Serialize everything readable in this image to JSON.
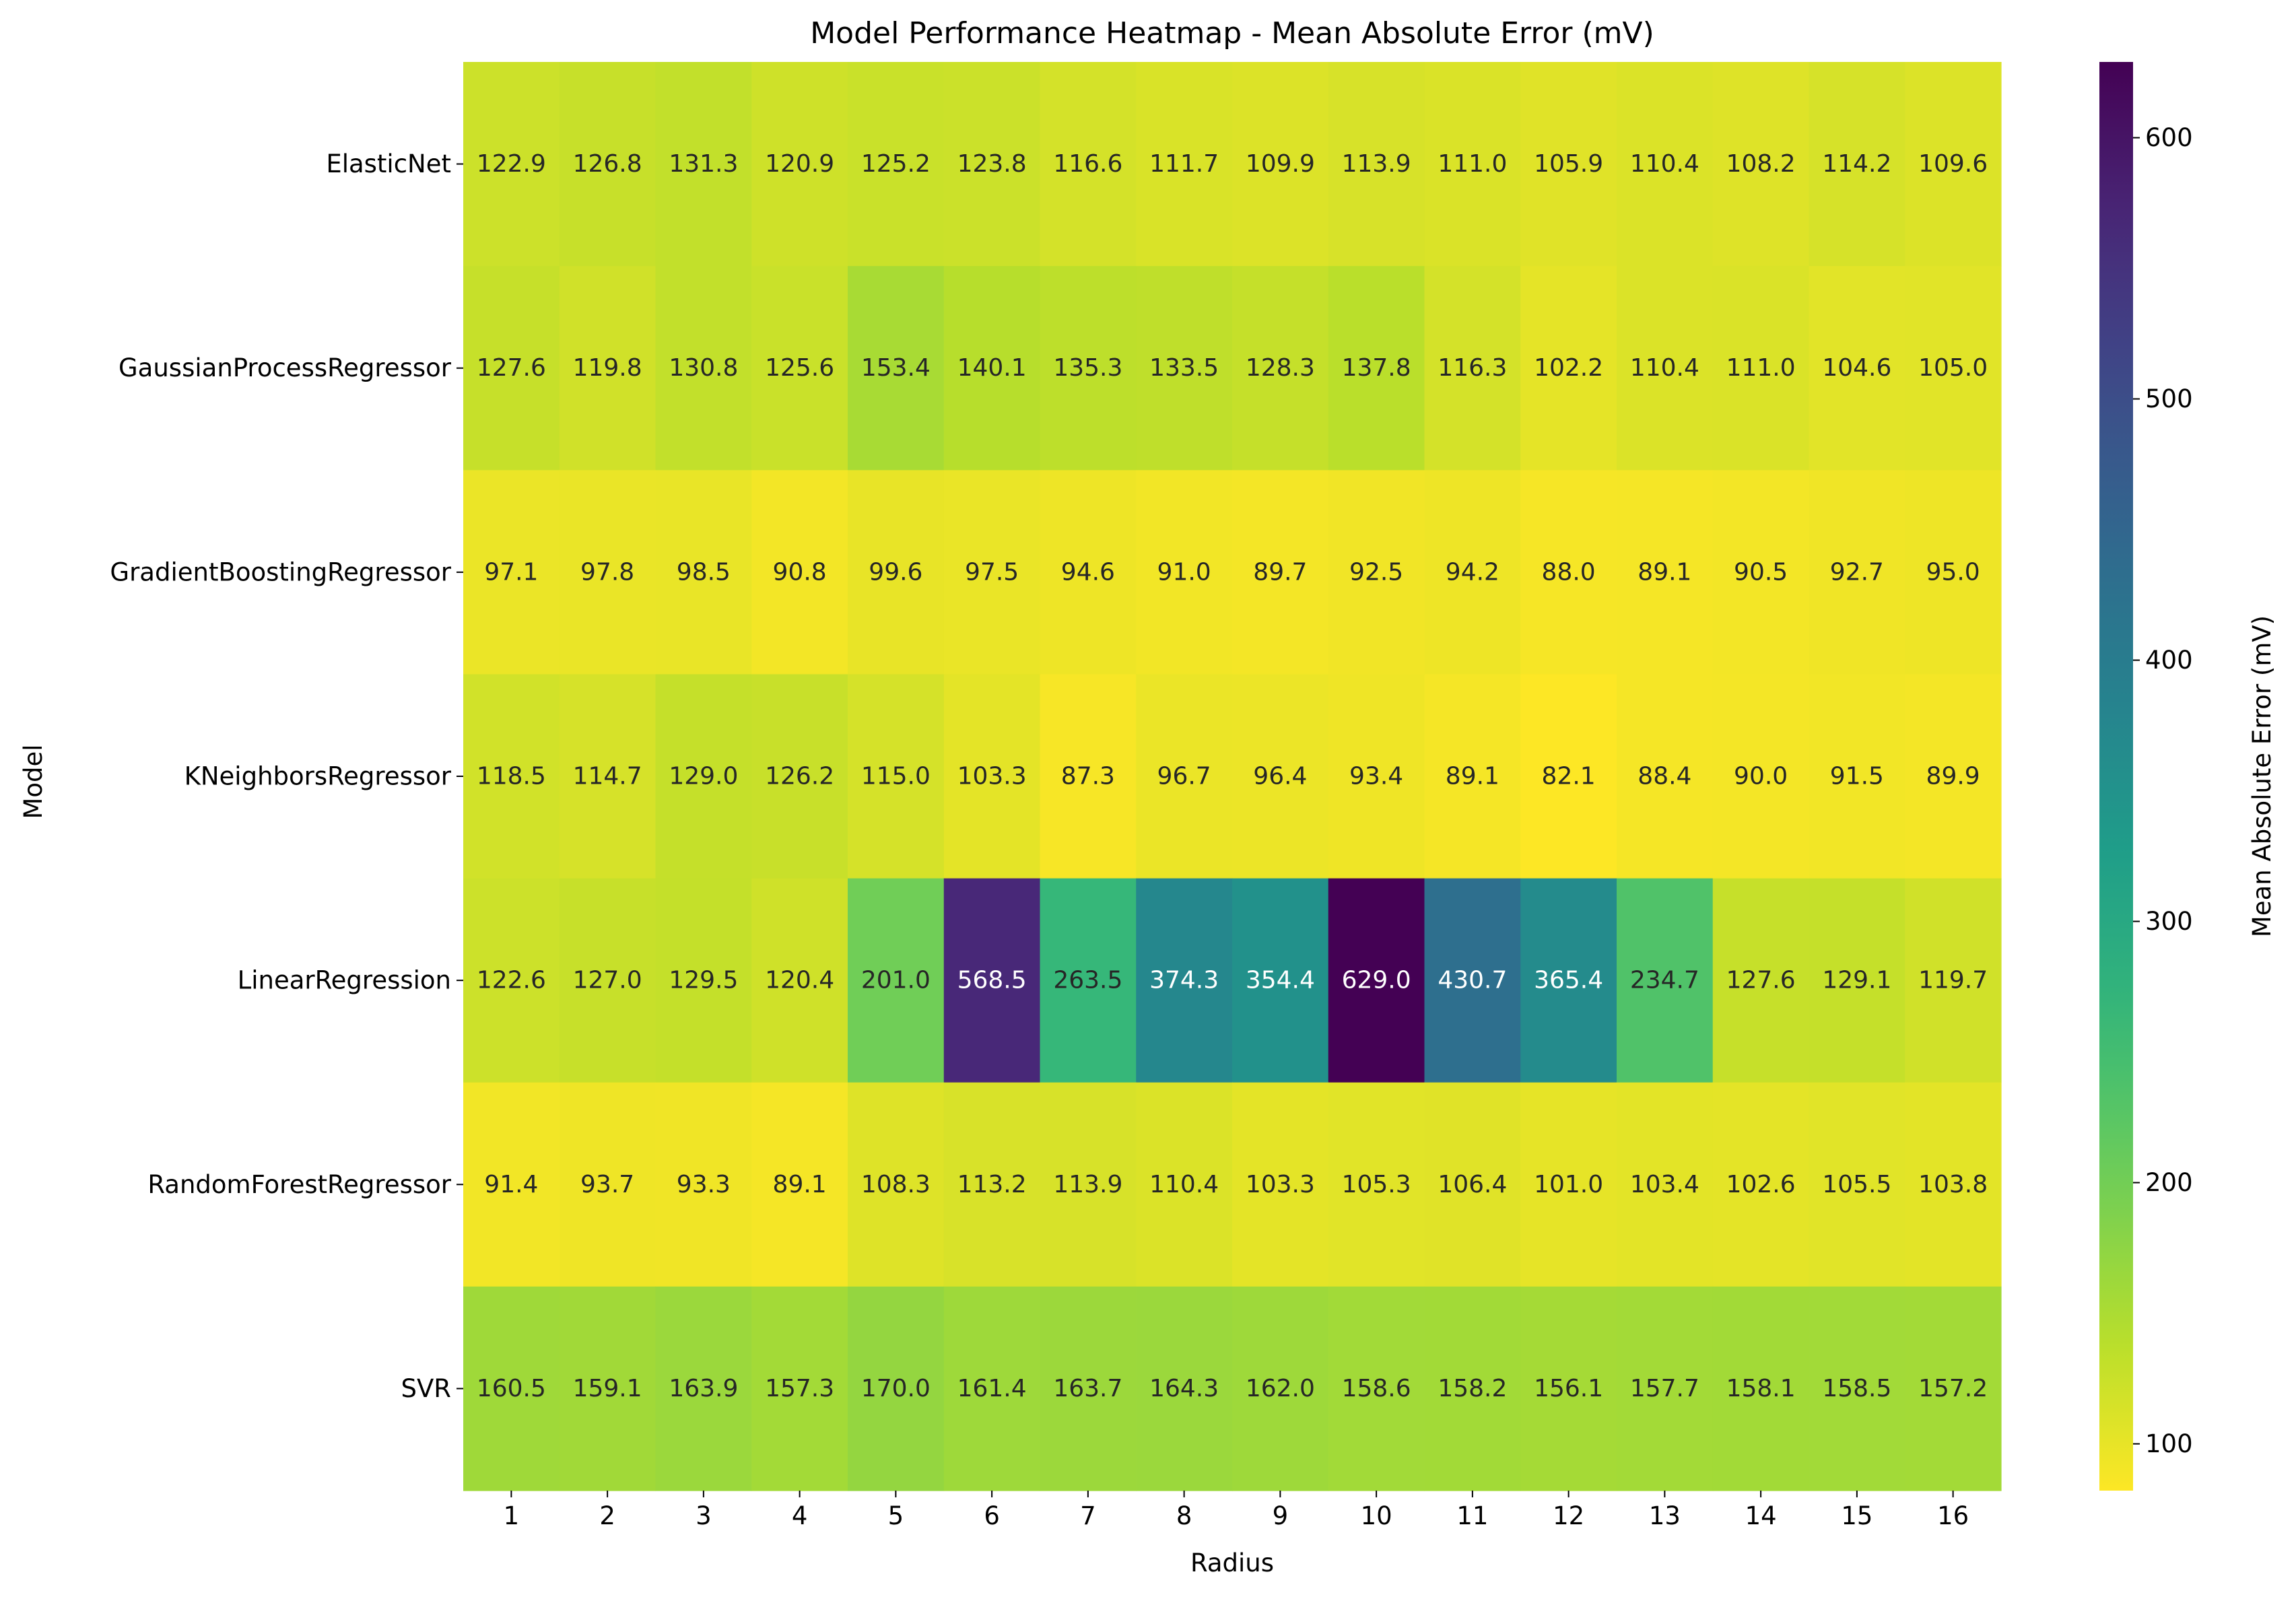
{
  "chart_data": {
    "type": "heatmap",
    "title": "Model Performance Heatmap - Mean Absolute Error (mV)",
    "xlabel": "Radius",
    "ylabel": "Model",
    "colorbar_label": "Mean Absolute Error (mV)",
    "colormap": "viridis_r",
    "value_range": [
      82.1,
      629.0
    ],
    "colorbar_ticks": [
      100,
      200,
      300,
      400,
      500,
      600
    ],
    "x": [
      "1",
      "2",
      "3",
      "4",
      "5",
      "6",
      "7",
      "8",
      "9",
      "10",
      "11",
      "12",
      "13",
      "14",
      "15",
      "16"
    ],
    "rows": [
      {
        "name": "ElasticNet",
        "values": [
          122.9,
          126.8,
          131.3,
          120.9,
          125.2,
          123.8,
          116.6,
          111.7,
          109.9,
          113.9,
          111.0,
          105.9,
          110.4,
          108.2,
          114.2,
          109.6
        ]
      },
      {
        "name": "GaussianProcessRegressor",
        "values": [
          127.6,
          119.8,
          130.8,
          125.6,
          153.4,
          140.1,
          135.3,
          133.5,
          128.3,
          137.8,
          116.3,
          102.2,
          110.4,
          111.0,
          104.6,
          105.0
        ]
      },
      {
        "name": "GradientBoostingRegressor",
        "values": [
          97.1,
          97.8,
          98.5,
          90.8,
          99.6,
          97.5,
          94.6,
          91.0,
          89.7,
          92.5,
          94.2,
          88.0,
          89.1,
          90.5,
          92.7,
          95.0
        ]
      },
      {
        "name": "KNeighborsRegressor",
        "values": [
          118.5,
          114.7,
          129.0,
          126.2,
          115.0,
          103.3,
          87.3,
          96.7,
          96.4,
          93.4,
          89.1,
          82.1,
          88.4,
          90.0,
          91.5,
          89.9
        ]
      },
      {
        "name": "LinearRegression",
        "values": [
          122.6,
          127.0,
          129.5,
          120.4,
          201.0,
          568.5,
          263.5,
          374.3,
          354.4,
          629.0,
          430.7,
          365.4,
          234.7,
          127.6,
          129.1,
          119.7
        ]
      },
      {
        "name": "RandomForestRegressor",
        "values": [
          91.4,
          93.7,
          93.3,
          89.1,
          108.3,
          113.2,
          113.9,
          110.4,
          103.3,
          105.3,
          106.4,
          101.0,
          103.4,
          102.6,
          105.5,
          103.8
        ]
      },
      {
        "name": "SVR",
        "values": [
          160.5,
          159.1,
          163.9,
          157.3,
          170.0,
          161.4,
          163.7,
          164.3,
          162.0,
          158.6,
          158.2,
          156.1,
          157.7,
          158.1,
          158.5,
          157.2
        ]
      }
    ]
  }
}
